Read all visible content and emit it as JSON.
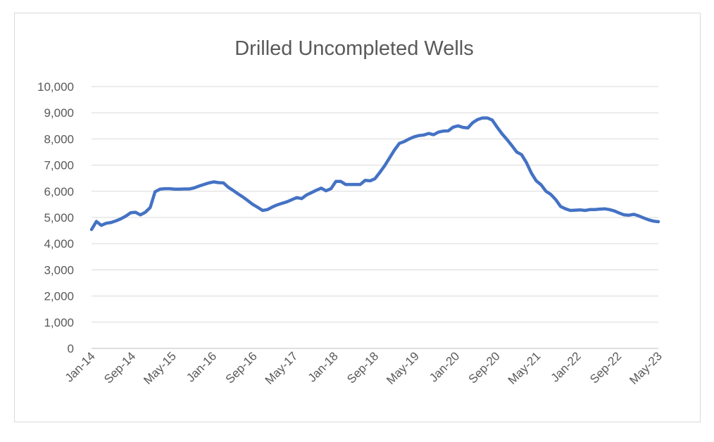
{
  "chart_data": {
    "type": "line",
    "title": "Drilled Uncompleted Wells",
    "xlabel": "",
    "ylabel": "",
    "ylim": [
      0,
      10000
    ],
    "y_ticks": [
      "0",
      "1,000",
      "2,000",
      "3,000",
      "4,000",
      "5,000",
      "6,000",
      "7,000",
      "8,000",
      "9,000",
      "10,000"
    ],
    "x_tick_labels": [
      "Jan-14",
      "Sep-14",
      "May-15",
      "Jan-16",
      "Sep-16",
      "May-17",
      "Jan-18",
      "Sep-18",
      "May-19",
      "Jan-20",
      "Sep-20",
      "May-21",
      "Jan-22",
      "Sep-22",
      "May-23"
    ],
    "x_start": "Jan-14",
    "x_end": "May-23",
    "grid": true,
    "legend": "none",
    "line_color": "#4472C4",
    "series": [
      {
        "values": [
          4540,
          4850,
          4700,
          4780,
          4810,
          4870,
          4950,
          5050,
          5180,
          5200,
          5100,
          5200,
          5380,
          5980,
          6080,
          6100,
          6100,
          6080,
          6080,
          6090,
          6090,
          6130,
          6200,
          6260,
          6320,
          6360,
          6330,
          6320,
          6150,
          6030,
          5900,
          5780,
          5640,
          5500,
          5390,
          5270,
          5300,
          5400,
          5480,
          5540,
          5600,
          5680,
          5760,
          5720,
          5860,
          5950,
          6040,
          6120,
          6020,
          6100,
          6380,
          6380,
          6260,
          6260,
          6260,
          6260,
          6420,
          6400,
          6480,
          6720,
          6980,
          7280,
          7580,
          7830,
          7900,
          8000,
          8080,
          8130,
          8150,
          8210,
          8160,
          8260,
          8300,
          8310,
          8450,
          8500,
          8440,
          8420,
          8620,
          8740,
          8800,
          8800,
          8720,
          8450,
          8200,
          7980,
          7750,
          7500,
          7400,
          7100,
          6700,
          6400,
          6250,
          6000,
          5880,
          5680,
          5420,
          5330,
          5270,
          5280,
          5290,
          5270,
          5300,
          5300,
          5320,
          5330,
          5300,
          5250,
          5170,
          5100,
          5090,
          5120,
          5060,
          4980,
          4910,
          4860,
          4840
        ]
      }
    ]
  }
}
